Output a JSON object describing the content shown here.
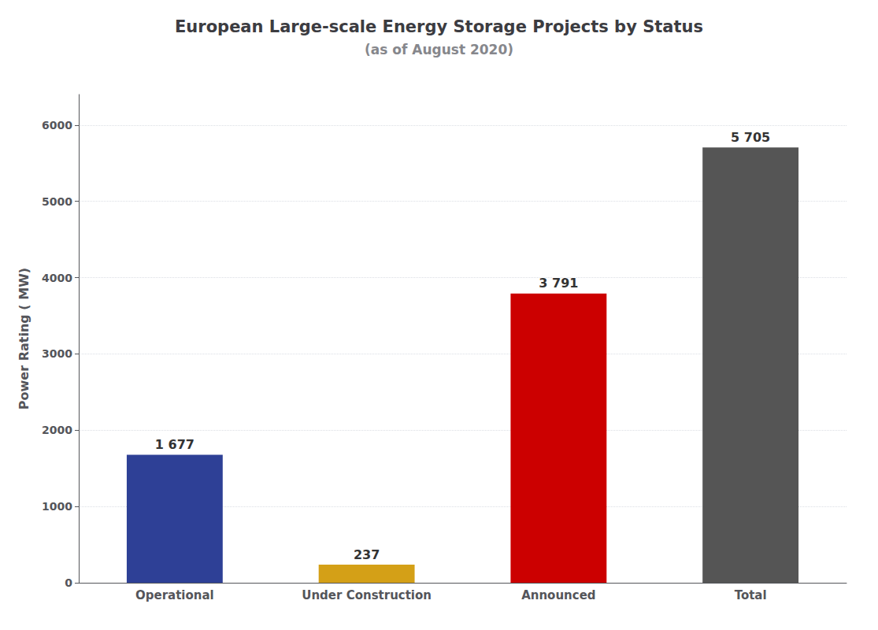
{
  "chart_data": {
    "type": "bar",
    "title": "European Large-scale Energy Storage Projects by Status",
    "subtitle": "(as of August 2020)",
    "ylabel": "Power Rating ( MW)",
    "categories": [
      "Operational",
      "Under Construction",
      "Announced",
      "Total"
    ],
    "values": [
      1677,
      237,
      3791,
      5705
    ],
    "value_labels": [
      "1 677",
      "237",
      "3 791",
      "5 705"
    ],
    "colors": [
      "#2e4096",
      "#d4a017",
      "#cc0000",
      "#555555"
    ],
    "ylim": [
      0,
      6400
    ],
    "yticks": [
      0,
      1000,
      2000,
      3000,
      4000,
      5000,
      6000
    ],
    "grid": true,
    "data_labels": true
  }
}
